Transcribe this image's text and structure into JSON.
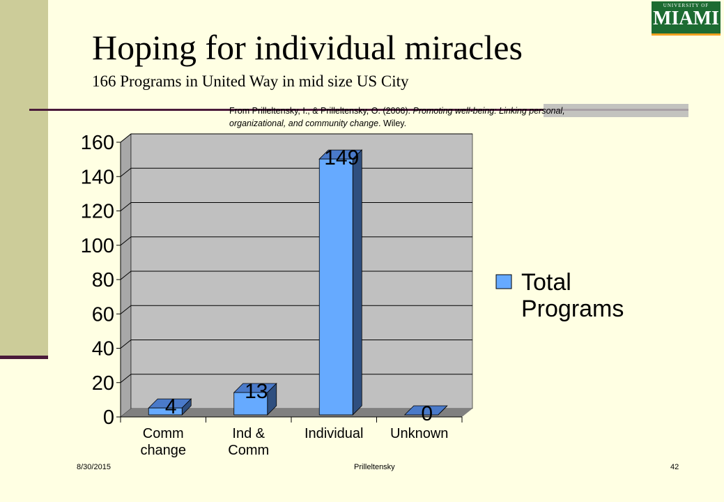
{
  "slide": {
    "title": "Hoping for individual miracles",
    "subtitle": "166 Programs in United Way in mid size US City",
    "citation_plain": "From Prilleltensky, I., & Prilleltensky, O. (2006). ",
    "citation_italic": "Promoting well-being: Linking personal, organizational, and community change",
    "citation_end": ". Wiley.",
    "logo_top": "UNIVERSITY OF",
    "logo_main": "MIAMI"
  },
  "footer": {
    "date": "8/30/2015",
    "author": "Prilleltensky",
    "page": "42"
  },
  "colors": {
    "background": "#ffffe3",
    "sidebar": "#cccc99",
    "accent_line": "#4a1a3a",
    "bar_front": "#66aaff",
    "bar_side": "#2f4f7f",
    "bar_top": "#4a7ac9",
    "plot_wall": "#c0c0c0",
    "floor": "#808080"
  },
  "chart_data": {
    "type": "bar",
    "categories": [
      [
        "Comm",
        "change"
      ],
      [
        "Ind &",
        "Comm"
      ],
      [
        "Individual"
      ],
      [
        "Unknown"
      ]
    ],
    "series": [
      {
        "name": "Total Programs",
        "legend_lines": [
          "Total",
          "Programs"
        ],
        "values": [
          4,
          13,
          149,
          0
        ]
      }
    ],
    "data_labels": [
      "4",
      "13",
      "149",
      "0"
    ],
    "ylim": [
      0,
      160
    ],
    "yticks": [
      "0",
      "20",
      "40",
      "60",
      "80",
      "100",
      "120",
      "140",
      "160"
    ],
    "grid": true,
    "legend_position": "right",
    "style": "3d-column"
  }
}
